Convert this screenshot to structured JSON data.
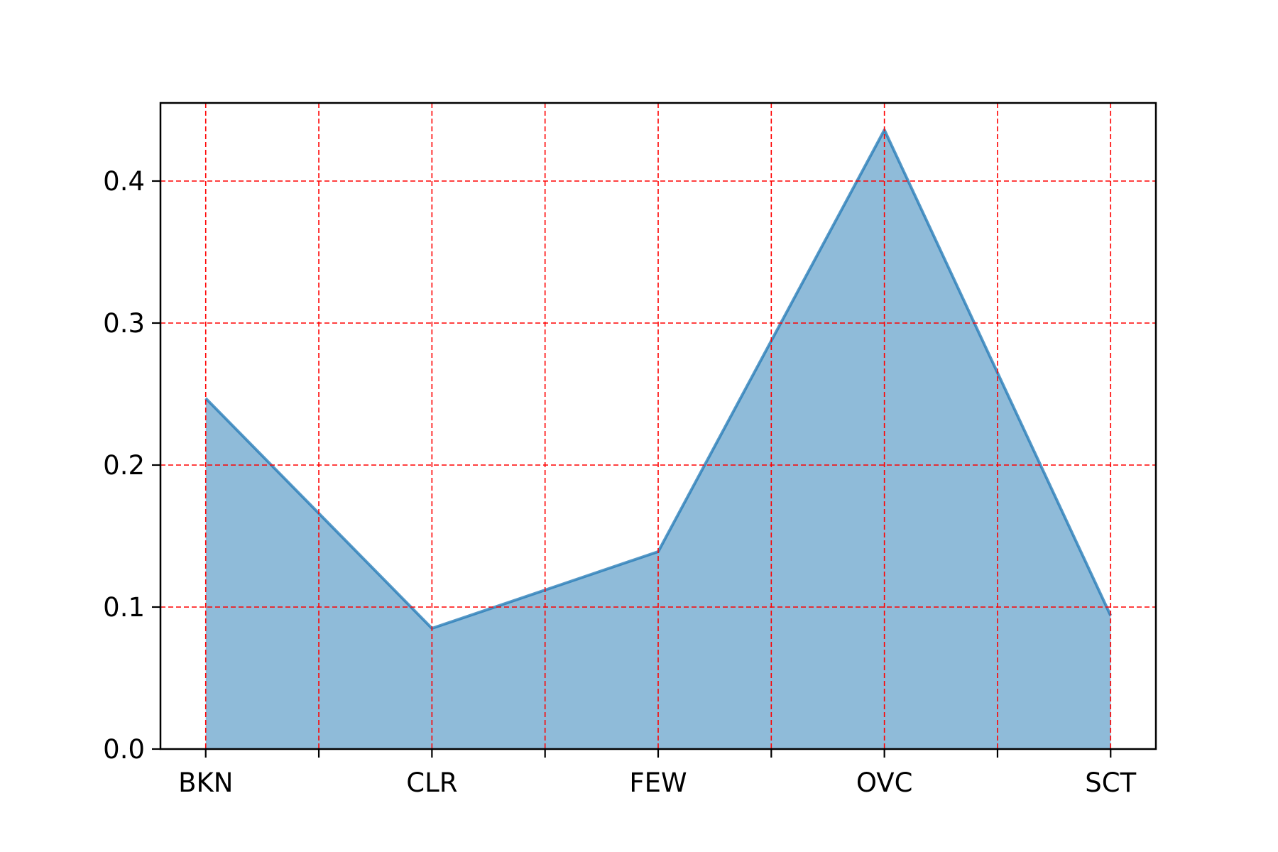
{
  "chart_data": {
    "type": "area",
    "title": "",
    "xlabel": "",
    "ylabel": "",
    "categories": [
      "BKN",
      "CLR",
      "FEW",
      "OVC",
      "SCT"
    ],
    "series": [
      {
        "values": [
          0.247,
          0.085,
          0.139,
          0.436,
          0.094
        ]
      }
    ],
    "xlim": [
      -0.2,
      4.2
    ],
    "ylim": [
      0.0,
      0.455
    ],
    "yticks": [
      0.0,
      0.1,
      0.2,
      0.3,
      0.4
    ],
    "ytick_labels": [
      "0.0",
      "0.1",
      "0.2",
      "0.3",
      "0.4"
    ],
    "xticks_minor": [
      0.5,
      1.5,
      2.5,
      3.5
    ],
    "grid": true,
    "grid_style": "dashed",
    "colors": {
      "fill": "#1f77b4",
      "line": "#1f77b4",
      "grid": "#ff0000",
      "axis": "#000000"
    },
    "fill_opacity": 0.5
  }
}
